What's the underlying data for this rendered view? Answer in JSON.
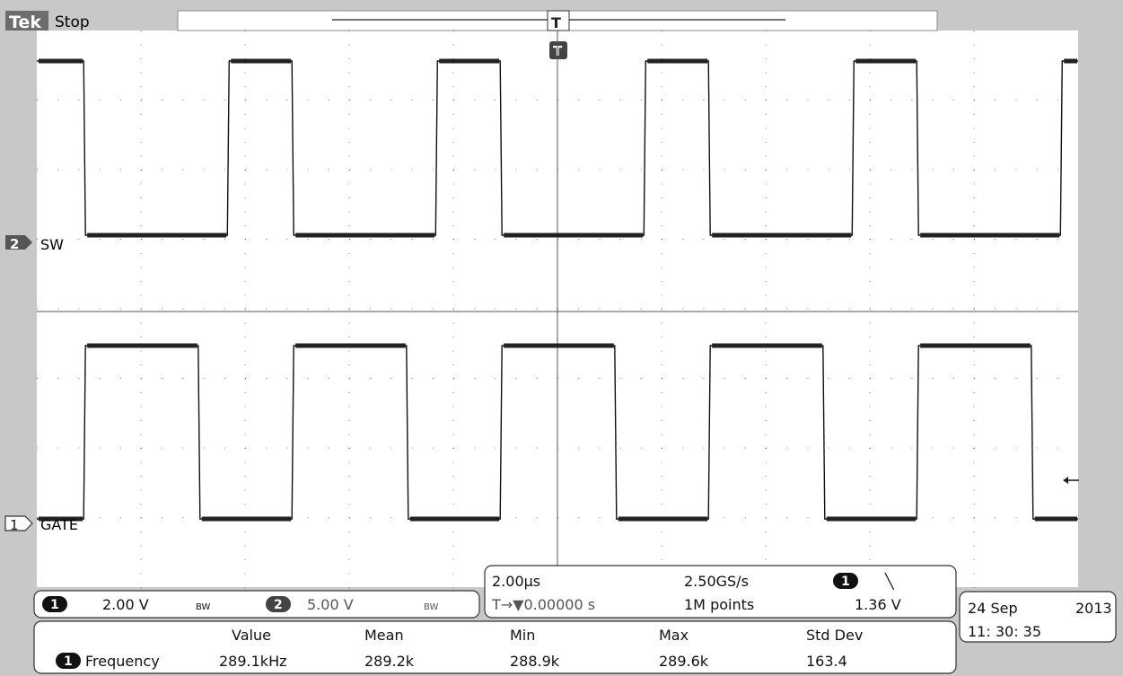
{
  "header": {
    "brand": "Tek",
    "acq_state": "Stop",
    "trigger_marker": "T"
  },
  "channels": [
    {
      "id": "2",
      "label": "SW",
      "color": "#000000"
    },
    {
      "id": "1",
      "label": "GATE",
      "color": "#000000"
    }
  ],
  "vertical": {
    "ch1_badge": "1",
    "ch1_scale": "2.00 V",
    "ch1_bw": "BW",
    "ch2_badge": "2",
    "ch2_scale": "5.00 V",
    "ch2_bw": "BW"
  },
  "horizontal": {
    "timebase": "2.00µs",
    "sample_rate": "2.50GS/s",
    "trig_channel": "1",
    "trig_slope": "╲",
    "trig_pos": "T→▼0.00000 s",
    "record": "1M points",
    "trig_level": "1.36 V"
  },
  "datetime": {
    "date": "24 Sep",
    "year": "2013",
    "time": "11: 30: 35"
  },
  "measurement": {
    "headers": [
      "Value",
      "Mean",
      "Min",
      "Max",
      "Std Dev"
    ],
    "channel": "1",
    "name": "Frequency",
    "values": [
      "289.1kHz",
      "289.2k",
      "288.9k",
      "289.6k",
      "163.4"
    ]
  },
  "waveforms": {
    "period_divs": 2.0,
    "sw": {
      "high_divs": 1.25,
      "first_rise_div": 1.25
    },
    "gate": {
      "high_divs": 1.25,
      "first_rise_div": 0.5
    }
  }
}
